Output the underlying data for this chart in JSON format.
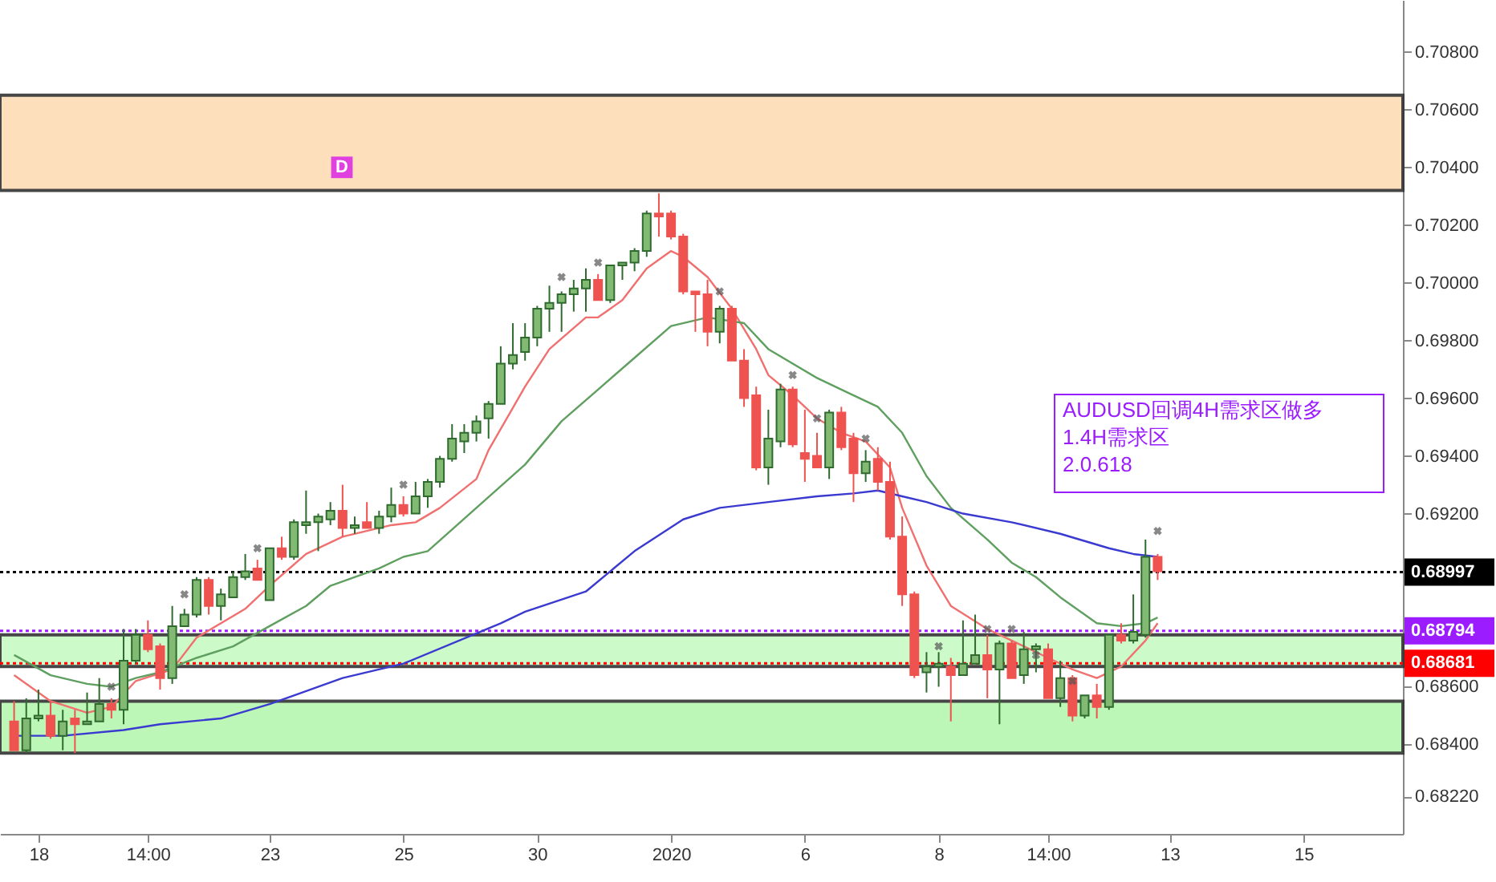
{
  "chart_data": {
    "type": "candlestick",
    "categories": [
      null,
      null,
      "18",
      null,
      null,
      null,
      null,
      null,
      null,
      null,
      null,
      "14:00",
      null,
      null,
      null,
      null,
      null,
      null,
      null,
      null,
      null,
      "23",
      null,
      null,
      null,
      null,
      null,
      null,
      null,
      null,
      null,
      null,
      "25",
      null,
      null,
      null,
      null,
      null,
      null,
      null,
      null,
      null,
      null,
      "30",
      null,
      null,
      null,
      null,
      null,
      null,
      null,
      null,
      null,
      null,
      "2020",
      null,
      null,
      null,
      null,
      null,
      null,
      null,
      null,
      null,
      null,
      "6",
      null,
      null,
      null,
      null,
      null,
      null,
      null,
      null,
      null,
      null,
      "8",
      null,
      null,
      null,
      null,
      null,
      null,
      null,
      null,
      "14:00",
      null,
      null,
      null,
      null,
      null,
      null,
      null,
      null,
      null,
      "13",
      null,
      null,
      null,
      null,
      null,
      null,
      null,
      null,
      null,
      null,
      "15",
      null,
      null,
      null,
      null,
      null,
      null,
      null
    ],
    "ohlc": [
      [
        0.6848,
        0.6855,
        0.6838,
        0.6838
      ],
      [
        0.6838,
        0.6856,
        0.6837,
        0.6849
      ],
      [
        0.6849,
        0.6859,
        0.6848,
        0.685
      ],
      [
        0.685,
        0.6855,
        0.6842,
        0.6843
      ],
      [
        0.6843,
        0.6852,
        0.6838,
        0.6848
      ],
      [
        0.6849,
        0.6852,
        0.6837,
        0.6847
      ],
      [
        0.6847,
        0.6858,
        0.6847,
        0.6848
      ],
      [
        0.6848,
        0.6863,
        0.6848,
        0.6854
      ],
      [
        0.6854,
        0.6856,
        0.6849,
        0.6852
      ],
      [
        0.6852,
        0.688,
        0.6847,
        0.6869
      ],
      [
        0.6869,
        0.688,
        0.6868,
        0.6878
      ],
      [
        0.6878,
        0.6883,
        0.6872,
        0.6873
      ],
      [
        0.6874,
        0.6875,
        0.6859,
        0.6863
      ],
      [
        0.6863,
        0.6888,
        0.6861,
        0.6881
      ],
      [
        0.6881,
        0.6887,
        0.6881,
        0.6885
      ],
      [
        0.6885,
        0.6898,
        0.6884,
        0.6897
      ],
      [
        0.6897,
        0.6898,
        0.6885,
        0.6888
      ],
      [
        0.6888,
        0.6894,
        0.6883,
        0.6892
      ],
      [
        0.6891,
        0.69,
        0.6891,
        0.6898
      ],
      [
        0.6898,
        0.6906,
        0.6897,
        0.69
      ],
      [
        0.6901,
        0.6904,
        0.6897,
        0.6897
      ],
      [
        0.689,
        0.6908,
        0.689,
        0.6908
      ],
      [
        0.6908,
        0.6912,
        0.6904,
        0.6905
      ],
      [
        0.6905,
        0.6918,
        0.6904,
        0.6917
      ],
      [
        0.6916,
        0.6928,
        0.6913,
        0.6917
      ],
      [
        0.6917,
        0.692,
        0.6907,
        0.6919
      ],
      [
        0.6918,
        0.6924,
        0.6916,
        0.6921
      ],
      [
        0.6921,
        0.693,
        0.6912,
        0.6915
      ],
      [
        0.6915,
        0.6919,
        0.6913,
        0.6916
      ],
      [
        0.6917,
        0.6924,
        0.6915,
        0.6915
      ],
      [
        0.6915,
        0.6921,
        0.6913,
        0.6919
      ],
      [
        0.6919,
        0.6929,
        0.6917,
        0.6923
      ],
      [
        0.6923,
        0.6926,
        0.6919,
        0.692
      ],
      [
        0.692,
        0.6931,
        0.692,
        0.6926
      ],
      [
        0.6926,
        0.6932,
        0.6922,
        0.6931
      ],
      [
        0.6931,
        0.694,
        0.6929,
        0.6939
      ],
      [
        0.6939,
        0.6951,
        0.6938,
        0.6946
      ],
      [
        0.6945,
        0.6951,
        0.6941,
        0.6948
      ],
      [
        0.6948,
        0.6954,
        0.6945,
        0.6952
      ],
      [
        0.6953,
        0.6959,
        0.6946,
        0.6958
      ],
      [
        0.6958,
        0.6978,
        0.6958,
        0.6972
      ],
      [
        0.6972,
        0.6986,
        0.697,
        0.6975
      ],
      [
        0.6976,
        0.6986,
        0.6973,
        0.6981
      ],
      [
        0.6981,
        0.6992,
        0.6978,
        0.6991
      ],
      [
        0.6991,
        0.6999,
        0.6983,
        0.6993
      ],
      [
        0.6993,
        0.6997,
        0.6983,
        0.6996
      ],
      [
        0.6996,
        0.7001,
        0.699,
        0.6998
      ],
      [
        0.6998,
        0.7005,
        0.699,
        0.7001
      ],
      [
        0.7001,
        0.7003,
        0.6994,
        0.6994
      ],
      [
        0.6994,
        0.7006,
        0.6993,
        0.7006
      ],
      [
        0.7006,
        0.7007,
        0.7001,
        0.7007
      ],
      [
        0.7007,
        0.7012,
        0.7004,
        0.7011
      ],
      [
        0.7011,
        0.7025,
        0.7009,
        0.7024
      ],
      [
        0.7024,
        0.7031,
        0.7016,
        0.7023
      ],
      [
        0.7024,
        0.7025,
        0.7015,
        0.7016
      ],
      [
        0.7016,
        0.7017,
        0.6996,
        0.6997
      ],
      [
        0.6997,
        0.6997,
        0.6983,
        0.6996
      ],
      [
        0.6996,
        0.7001,
        0.6978,
        0.6983
      ],
      [
        0.6983,
        0.6992,
        0.6979,
        0.6991
      ],
      [
        0.6991,
        0.6992,
        0.6973,
        0.6973
      ],
      [
        0.6973,
        0.6977,
        0.6957,
        0.696
      ],
      [
        0.6961,
        0.6964,
        0.6935,
        0.6936
      ],
      [
        0.6936,
        0.6956,
        0.693,
        0.6946
      ],
      [
        0.6945,
        0.6965,
        0.6943,
        0.6963
      ],
      [
        0.6963,
        0.6964,
        0.6943,
        0.6944
      ],
      [
        0.6941,
        0.6956,
        0.6931,
        0.6939
      ],
      [
        0.694,
        0.6948,
        0.6936,
        0.6936
      ],
      [
        0.6936,
        0.6956,
        0.6932,
        0.6955
      ],
      [
        0.6955,
        0.6957,
        0.6942,
        0.6943
      ],
      [
        0.6946,
        0.6948,
        0.6924,
        0.6934
      ],
      [
        0.6934,
        0.6942,
        0.6931,
        0.6938
      ],
      [
        0.6939,
        0.6943,
        0.6928,
        0.6931
      ],
      [
        0.6931,
        0.6938,
        0.6911,
        0.6912
      ],
      [
        0.6912,
        0.6919,
        0.6888,
        0.6892
      ],
      [
        0.6892,
        0.6893,
        0.6863,
        0.6864
      ],
      [
        0.6865,
        0.6872,
        0.6858,
        0.6867
      ],
      [
        0.6867,
        0.6872,
        0.686,
        0.6868
      ],
      [
        0.6867,
        0.687,
        0.6848,
        0.6864
      ],
      [
        0.6864,
        0.6883,
        0.6864,
        0.6868
      ],
      [
        0.6868,
        0.6885,
        0.6868,
        0.6871
      ],
      [
        0.6871,
        0.6878,
        0.6856,
        0.6866
      ],
      [
        0.6866,
        0.6876,
        0.6847,
        0.6875
      ],
      [
        0.6875,
        0.6876,
        0.6863,
        0.6863
      ],
      [
        0.6864,
        0.6879,
        0.6861,
        0.6873
      ],
      [
        0.6873,
        0.6875,
        0.6865,
        0.6874
      ],
      [
        0.6873,
        0.6875,
        0.6856,
        0.6856
      ],
      [
        0.6856,
        0.6869,
        0.6853,
        0.6863
      ],
      [
        0.6863,
        0.6864,
        0.6848,
        0.685
      ],
      [
        0.685,
        0.6857,
        0.6849,
        0.6857
      ],
      [
        0.6857,
        0.6861,
        0.6849,
        0.6853
      ],
      [
        0.6853,
        0.6878,
        0.6852,
        0.6878
      ],
      [
        0.6878,
        0.6882,
        0.6875,
        0.6876
      ],
      [
        0.6876,
        0.6892,
        0.6875,
        0.6879
      ],
      [
        0.6878,
        0.6911,
        0.6877,
        0.6905
      ],
      [
        0.6905,
        0.6906,
        0.6897,
        0.69
      ],
      null,
      null,
      null,
      null,
      null,
      null,
      null,
      null,
      null,
      null,
      null,
      null,
      null,
      null,
      null,
      null,
      null,
      null,
      null
    ],
    "series": [
      {
        "type": "line",
        "color": "#f07070",
        "values": [
          0.6864,
          null,
          null,
          0.6855,
          null,
          null,
          0.6851,
          null,
          0.6853,
          null,
          0.6862,
          null,
          null,
          0.6866,
          null,
          0.6877,
          null,
          null,
          null,
          0.6887,
          null,
          0.6895,
          null,
          null,
          0.6906,
          null,
          null,
          0.6912,
          null,
          null,
          null,
          0.6916,
          null,
          0.6917,
          null,
          0.6922,
          null,
          null,
          0.6932,
          0.6942,
          null,
          null,
          0.6964,
          null,
          0.6977,
          null,
          null,
          0.6988,
          0.6988,
          null,
          0.6994,
          null,
          0.7005,
          null,
          0.7011,
          0.7009,
          null,
          0.7002,
          null,
          0.6991,
          null,
          0.6977,
          0.6968,
          null,
          0.6961,
          null,
          0.6953,
          null,
          0.6948,
          null,
          0.6945,
          null,
          0.6936,
          0.6922,
          null,
          0.6902,
          null,
          0.6888,
          null,
          null,
          0.688,
          null,
          0.6876,
          null,
          null,
          0.687,
          null,
          0.6866,
          null,
          0.6863,
          null,
          0.6867,
          null,
          0.6876,
          0.6882,
          null,
          null,
          null,
          null,
          null,
          null,
          null,
          null,
          null,
          null,
          null,
          null,
          null,
          null,
          null,
          null,
          null,
          null,
          null
        ]
      },
      {
        "type": "line",
        "color": "#5f9f5f",
        "values": [
          0.6871,
          null,
          null,
          0.6864,
          null,
          null,
          0.6861,
          null,
          0.686,
          null,
          0.6863,
          null,
          0.6865,
          null,
          null,
          0.687,
          null,
          null,
          0.6874,
          null,
          null,
          0.6881,
          null,
          null,
          0.6888,
          null,
          0.6895,
          null,
          null,
          null,
          0.6901,
          null,
          0.6905,
          null,
          0.6907,
          null,
          null,
          null,
          0.6922,
          null,
          null,
          null,
          0.6937,
          null,
          null,
          0.6952,
          null,
          null,
          0.6963,
          null,
          null,
          0.6974,
          null,
          null,
          0.6985,
          null,
          null,
          0.6988,
          null,
          null,
          0.6986,
          null,
          0.6977,
          null,
          null,
          null,
          0.6967,
          null,
          0.6963,
          null,
          null,
          0.6957,
          null,
          0.6948,
          null,
          0.6933,
          null,
          0.6922,
          null,
          null,
          0.6911,
          null,
          0.6903,
          null,
          0.6898,
          null,
          0.6891,
          null,
          null,
          0.6882,
          null,
          0.6881,
          null,
          0.6882,
          0.6884,
          null,
          null,
          null,
          null,
          null,
          null,
          null,
          null,
          null,
          null,
          null,
          null,
          null,
          null,
          null,
          null,
          null,
          null,
          null
        ]
      },
      {
        "type": "line",
        "color": "#3a3ad0",
        "values": [
          0.6843,
          null,
          null,
          null,
          0.6843,
          null,
          null,
          null,
          null,
          0.6845,
          null,
          null,
          0.6847,
          null,
          null,
          null,
          null,
          0.6849,
          null,
          null,
          null,
          0.6854,
          null,
          0.6857,
          null,
          null,
          null,
          0.6863,
          null,
          null,
          null,
          null,
          0.6868,
          null,
          null,
          null,
          null,
          null,
          null,
          null,
          0.6882,
          null,
          0.6886,
          null,
          null,
          null,
          null,
          0.6893,
          null,
          null,
          null,
          0.6907,
          null,
          null,
          null,
          0.6918,
          null,
          null,
          0.6922,
          null,
          null,
          null,
          0.6924,
          null,
          null,
          null,
          0.6926,
          null,
          null,
          0.6927,
          null,
          0.6928,
          null,
          0.6926,
          null,
          0.6924,
          null,
          null,
          0.692,
          null,
          null,
          null,
          0.6917,
          null,
          null,
          null,
          0.6913,
          null,
          null,
          null,
          0.6908,
          null,
          0.6906,
          null,
          0.6905,
          null,
          null,
          null,
          null,
          null,
          null,
          null,
          null,
          null,
          null,
          null,
          null,
          null,
          null,
          null,
          null,
          null,
          null,
          null
        ]
      },
      {
        "type": "scatter",
        "marker": "cross",
        "color": "#555555",
        "values": [
          null,
          null,
          null,
          null,
          null,
          null,
          null,
          null,
          0.686,
          null,
          null,
          null,
          null,
          null,
          0.6892,
          null,
          null,
          null,
          null,
          null,
          0.6908,
          null,
          null,
          null,
          null,
          null,
          null,
          null,
          null,
          null,
          null,
          null,
          0.693,
          null,
          null,
          null,
          null,
          null,
          null,
          null,
          null,
          null,
          null,
          null,
          null,
          0.7002,
          null,
          null,
          0.7007,
          null,
          null,
          null,
          null,
          null,
          null,
          null,
          null,
          null,
          0.6997,
          null,
          null,
          null,
          null,
          null,
          0.6968,
          null,
          0.6953,
          null,
          null,
          null,
          0.6946,
          null,
          null,
          null,
          null,
          null,
          0.6874,
          null,
          null,
          null,
          0.688,
          null,
          0.688,
          null,
          0.6871,
          null,
          null,
          0.6862,
          null,
          null,
          null,
          null,
          null,
          null,
          0.6914,
          null,
          null,
          null,
          null,
          null,
          null,
          null,
          null,
          null,
          null,
          null,
          null,
          null,
          null,
          null,
          null,
          null,
          null,
          null
        ]
      }
    ],
    "ylim": [
      0.6809,
      0.7098
    ],
    "yticks": [
      {
        "value": 0.708,
        "label": "0.70800"
      },
      {
        "value": 0.706,
        "label": "0.70600"
      },
      {
        "value": 0.704,
        "label": "0.70400"
      },
      {
        "value": 0.702,
        "label": "0.70200"
      },
      {
        "value": 0.7,
        "label": "0.70000"
      },
      {
        "value": 0.698,
        "label": "0.69800"
      },
      {
        "value": 0.696,
        "label": "0.69600"
      },
      {
        "value": 0.694,
        "label": "0.69400"
      },
      {
        "value": 0.692,
        "label": "0.69200"
      },
      {
        "value": 0.686,
        "label": "0.68600"
      },
      {
        "value": 0.684,
        "label": "0.68400"
      },
      {
        "value": 0.6822,
        "label": "0.68220"
      }
    ],
    "ref_lines": [
      {
        "axis": "y",
        "value": 0.68997,
        "label": "0.68997",
        "color": "#000000",
        "line_style": "dotted"
      },
      {
        "axis": "y",
        "value": 0.68794,
        "label": "0.68794",
        "color": "#9b1dff",
        "line_style": "dotted"
      },
      {
        "axis": "y",
        "value": 0.68681,
        "label": "0.68681",
        "color": "#ff0000",
        "line_style": "dotted"
      }
    ],
    "bands": [
      {
        "axis": "y",
        "from": 0.7032,
        "to": 0.7065,
        "color": "#fddcb4"
      },
      {
        "axis": "y",
        "from": 0.6837,
        "to": 0.6855,
        "color": "#b5f7b0"
      },
      {
        "axis": "y",
        "from": 0.6867,
        "to": 0.6878,
        "color": "#c8fac4"
      }
    ],
    "annotations": [
      {
        "text": "D",
        "y": 0.704
      },
      "AUDUSD回调4H需求区做多\n1.4H需求区\n2.0.618"
    ],
    "grid": false
  }
}
